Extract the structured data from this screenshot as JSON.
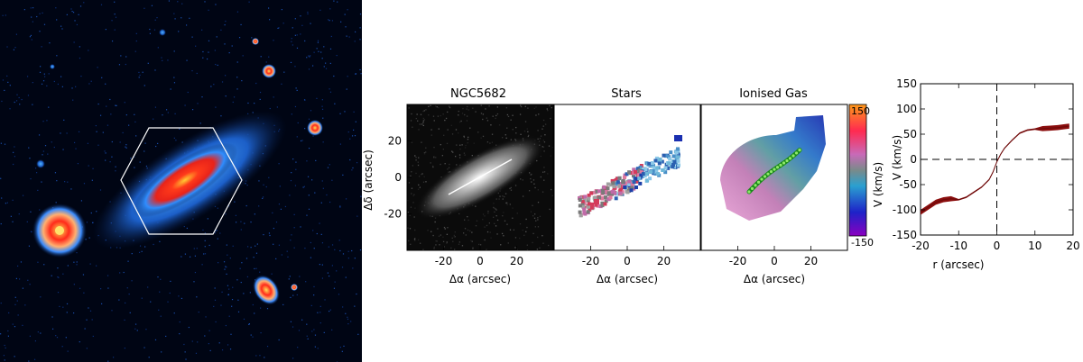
{
  "panels": [
    {
      "title": "NGC5682"
    },
    {
      "title": "Stars"
    },
    {
      "title": "Ionised Gas"
    }
  ],
  "map_axes": {
    "xlabel": "Δα  (arcsec)",
    "ylabel": "Δδ  (arcsec)",
    "x_ticks": [
      "-20",
      "0",
      "20"
    ],
    "y_ticks": [
      "20",
      "0",
      "-20"
    ]
  },
  "colorbar": {
    "max_label": "150",
    "min_label": "-150",
    "label": "V  (km/s)"
  },
  "colors": {
    "background_image": "#000514",
    "galaxy_core": "#ff2a1a",
    "galaxy_halo": "#3aa0ff",
    "rotation_band": "#8b0e0e",
    "gas_track": "#1a8a1a",
    "gas_points": "#8fe86a"
  },
  "chart_data": {
    "type": "line",
    "title": "",
    "xlabel": "r (arcsec)",
    "ylabel": "V  (km/s)",
    "xlim": [
      -20,
      20
    ],
    "ylim": [
      -150,
      150
    ],
    "x_ticks": [
      -20,
      -10,
      0,
      10,
      20
    ],
    "y_ticks": [
      -150,
      -100,
      -50,
      0,
      50,
      100,
      150
    ],
    "series": [
      {
        "x": [
          -20,
          -18,
          -16,
          -14,
          -12,
          -10,
          -8,
          -6,
          -4,
          -2,
          -1,
          0,
          1,
          2,
          4,
          6,
          8,
          10,
          12,
          14,
          16,
          18,
          19
        ],
        "y": [
          -105,
          -95,
          -85,
          -80,
          -78,
          -80,
          -75,
          -65,
          -55,
          -40,
          -25,
          -5,
          10,
          22,
          38,
          52,
          58,
          60,
          61,
          62,
          63,
          65,
          66
        ]
      }
    ],
    "reference_lines": {
      "x": 0,
      "y": 0
    }
  }
}
